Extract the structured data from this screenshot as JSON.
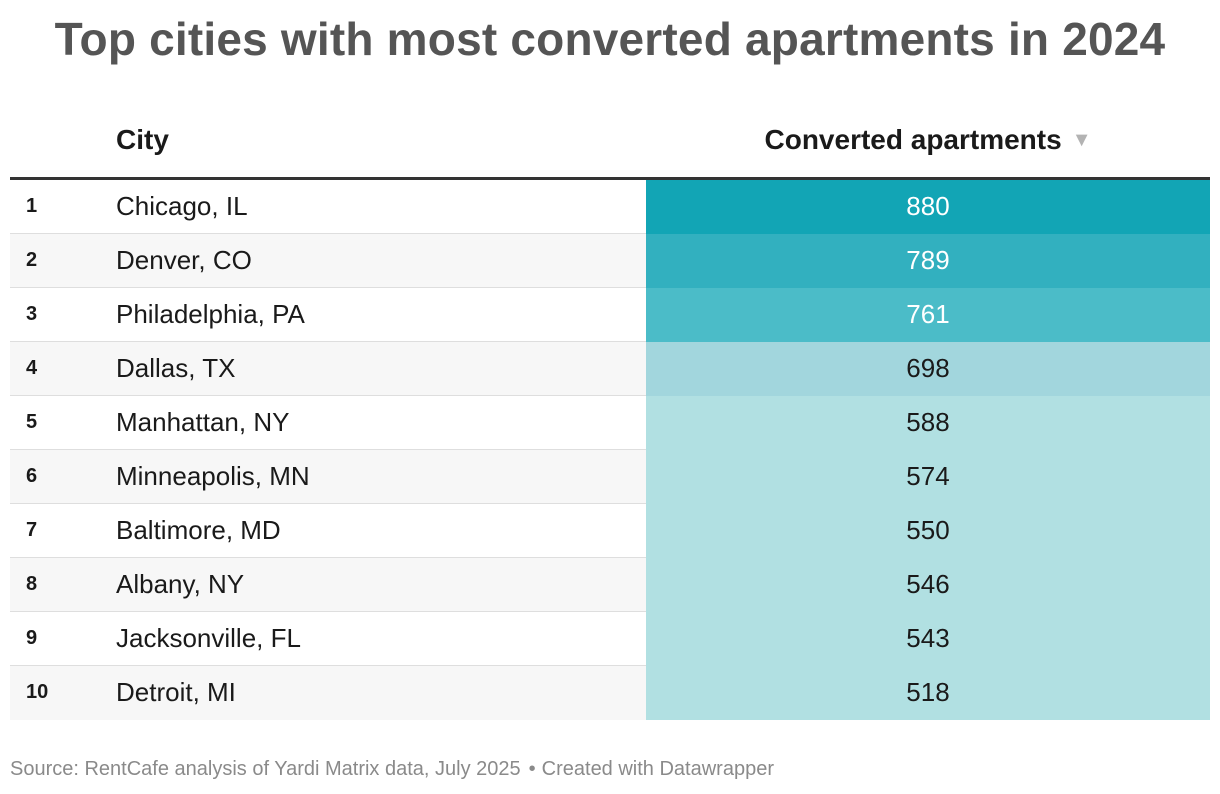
{
  "title": "Top cities with most converted apartments in 2024",
  "header": {
    "city_label": "City",
    "value_label": "Converted apartments",
    "sort_icon": "▼"
  },
  "footer": {
    "source": "Source: RentCafe analysis of Yardi Matrix data, July 2025",
    "separator": "•",
    "credit": "Created with Datawrapper"
  },
  "colors": {
    "title": "#555555",
    "header_rule": "#333333",
    "heat_scale": [
      "#b1e0e2",
      "#a2d6dd",
      "#4bbcc8",
      "#32b0bf",
      "#12a5b5"
    ]
  },
  "chart_data": {
    "type": "table",
    "title": "Top cities with most converted apartments in 2024",
    "columns": [
      "",
      "City",
      "Converted apartments"
    ],
    "sort": {
      "column": "Converted apartments",
      "order": "descending"
    },
    "rows": [
      {
        "rank": "1",
        "city": "Chicago, IL",
        "value": 880
      },
      {
        "rank": "2",
        "city": "Denver, CO",
        "value": 789
      },
      {
        "rank": "3",
        "city": "Philadelphia, PA",
        "value": 761
      },
      {
        "rank": "4",
        "city": "Dallas, TX",
        "value": 698
      },
      {
        "rank": "5",
        "city": "Manhattan, NY",
        "value": 588
      },
      {
        "rank": "6",
        "city": "Minneapolis, MN",
        "value": 574
      },
      {
        "rank": "7",
        "city": "Baltimore, MD",
        "value": 550
      },
      {
        "rank": "8",
        "city": "Albany, NY",
        "value": 546
      },
      {
        "rank": "9",
        "city": "Jacksonville, FL",
        "value": 543
      },
      {
        "rank": "10",
        "city": "Detroit, MI",
        "value": 518
      }
    ]
  }
}
